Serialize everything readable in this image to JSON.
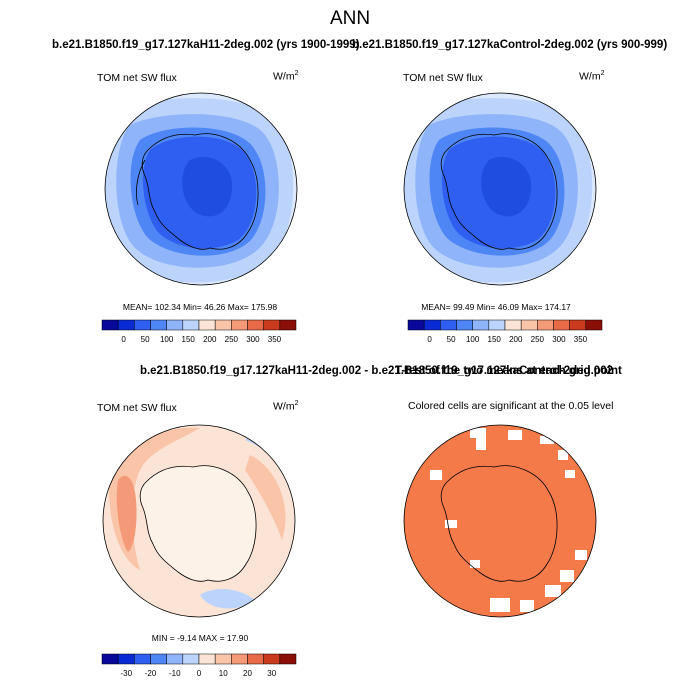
{
  "figure": {
    "title": "ANN",
    "case1_header": "b.e21.B1850.f19_g17.127kaH11-2deg.002 (yrs 1900-1999)",
    "case2_header": "b.e21.B1850.f19_g17.127kaControl-2deg.002 (yrs 900-999)",
    "diff_header": "b.e21.B1850.f19_g17.127kaH11-2deg.002 - b.e21.B1850.f19_g17.127kaControl-2deg.002",
    "ttest_header": "T-test of the two means at each grid point"
  },
  "panels": {
    "case1": {
      "label": "TOM net SW flux",
      "unit": "W/m",
      "unit_exp": "2",
      "stats": "MEAN= 102.34  Min=  46.26  Max= 175.98"
    },
    "case2": {
      "label": "TOM net SW flux",
      "unit": "W/m",
      "unit_exp": "2",
      "stats": "MEAN=  99.49  Min=  46.09  Max= 174.17"
    },
    "diff": {
      "label": "TOM net SW flux",
      "unit": "W/m",
      "unit_exp": "2",
      "stats": "MIN =  -9.14 MAX =  17.90"
    },
    "ttest": {
      "label": "Colored cells are significant at the 0.05 level"
    }
  },
  "colorbars": {
    "abs": {
      "ticks": [
        "0",
        "50",
        "100",
        "150",
        "200",
        "250",
        "300",
        "350"
      ],
      "colors": [
        "#08089a",
        "#0a2ad6",
        "#2e5ff0",
        "#4f86f6",
        "#8fb4f9",
        "#bcd4fb",
        "#fbe4d6",
        "#f9c4a8",
        "#f49a78",
        "#e86a48",
        "#c93a1e",
        "#8a0f08"
      ]
    },
    "diff": {
      "ticks": [
        "-30",
        "-20",
        "-10",
        "0",
        "10",
        "20",
        "30"
      ],
      "colors": [
        "#08089a",
        "#0a2ad6",
        "#2e5ff0",
        "#4f86f6",
        "#8fb4f9",
        "#bcd4fb",
        "#fbe4d6",
        "#f9c4a8",
        "#f49a78",
        "#e86a48",
        "#c93a1e",
        "#8a0f08"
      ]
    }
  },
  "map_colors": {
    "ocean_outer": "#dce8fb",
    "band_light": "#bcd4fb",
    "band_mid": "#8fb4f9",
    "band_blue": "#4f86f6",
    "land_blue": "#2e5ff0",
    "inner_blue": "#1f4de0",
    "diff_base": "#fbe4d6",
    "diff_mid": "#f9c4a8",
    "diff_hot": "#f49a78",
    "diff_land": "#fdf2e8",
    "diff_cool": "#bcd4fb",
    "ttest_sig": "#f47a4a"
  }
}
